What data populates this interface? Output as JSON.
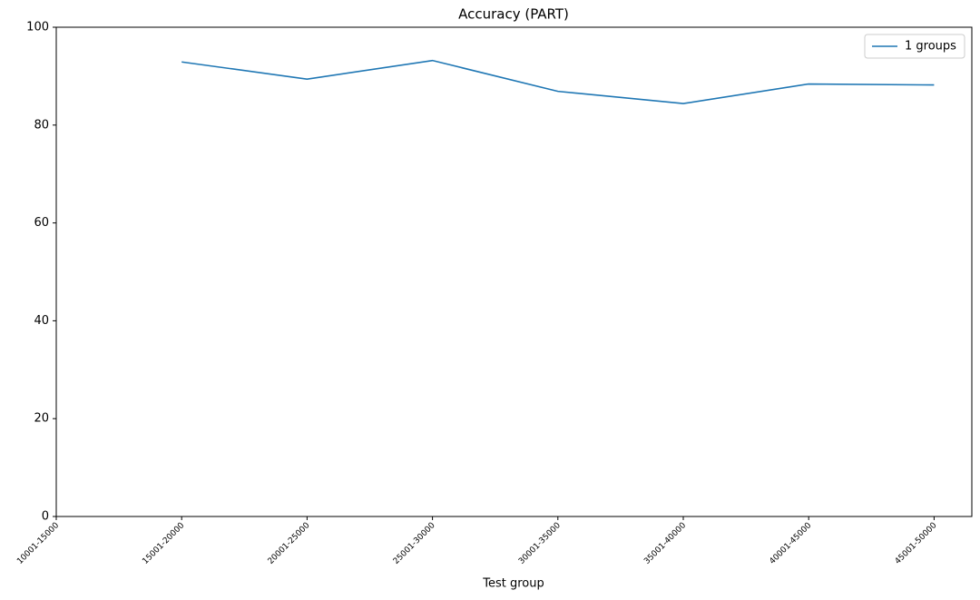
{
  "chart_data": {
    "type": "line",
    "title": "Accuracy (PART)",
    "x_label": "Test group",
    "categories": [
      "10001-15000",
      "15001-20000",
      "20001-25000",
      "25001-30000",
      "30001-35000",
      "35001-40000",
      "40001-45000",
      "45001-50000"
    ],
    "series": [
      {
        "name": "1 groups",
        "color": "#1f77b4",
        "values": [
          null,
          92.9,
          89.4,
          93.2,
          86.9,
          84.4,
          88.4,
          88.2
        ]
      }
    ],
    "ylim": [
      0,
      100
    ],
    "yticks": [
      0,
      20,
      40,
      60,
      80,
      100
    ],
    "legend": "upper right",
    "grid": false
  }
}
